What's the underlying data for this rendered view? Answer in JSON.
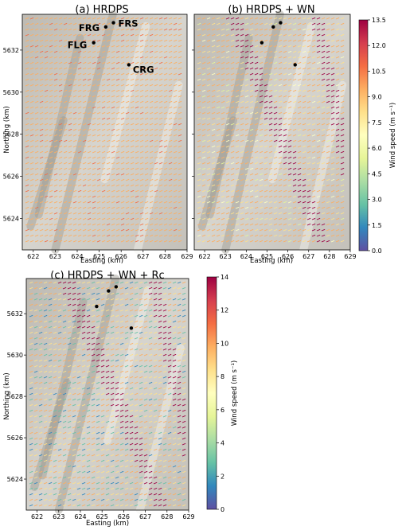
{
  "chart_data": {
    "type": "map",
    "panels": [
      {
        "title": "(a) HRDPS",
        "show_site_labels": true,
        "show_ylabel": true
      },
      {
        "title": "(b) HRDPS + WN",
        "show_site_labels": false,
        "show_ylabel": false
      },
      {
        "title": "(c) HRDPS + WN + Rc",
        "show_site_labels": false,
        "show_ylabel": true
      }
    ],
    "xlabel": "Easting (km)",
    "ylabel": "Northing (km)",
    "xlim": [
      621.5,
      629
    ],
    "ylim": [
      5622.5,
      5633.7
    ],
    "x_ticks": [
      "622",
      "623",
      "624",
      "625",
      "626",
      "627",
      "628",
      "629"
    ],
    "x_tick_values": [
      622,
      623,
      624,
      625,
      626,
      627,
      628,
      629
    ],
    "y_ticks": [
      "5624",
      "5626",
      "5628",
      "5630",
      "5632"
    ],
    "y_tick_values": [
      5624,
      5626,
      5628,
      5630,
      5632
    ],
    "sites": [
      {
        "name": "FRG",
        "x": 625.3,
        "y": 5633.1
      },
      {
        "name": "FRS",
        "x": 625.65,
        "y": 5633.3
      },
      {
        "name": "FLG",
        "x": 624.75,
        "y": 5632.35
      },
      {
        "name": "CRG",
        "x": 626.35,
        "y": 5631.3
      }
    ],
    "colorbars": [
      {
        "label": "Wind speed (m s⁻¹)",
        "range": [
          0,
          13.5
        ],
        "ticks": [
          "0.0",
          "1.5",
          "3.0",
          "4.5",
          "6.0",
          "7.5",
          "9.0",
          "10.5",
          "12.0",
          "13.5"
        ],
        "tick_values": [
          0,
          1.5,
          3,
          4.5,
          6,
          7.5,
          9,
          10.5,
          12,
          13.5
        ]
      },
      {
        "label": "Wind speed (m s⁻¹)",
        "range": [
          0,
          14
        ],
        "ticks": [
          "0",
          "2",
          "4",
          "6",
          "8",
          "10",
          "12",
          "14"
        ],
        "tick_values": [
          0,
          2,
          4,
          6,
          8,
          10,
          12,
          14
        ]
      }
    ],
    "colormap": [
      "#5e4fa2",
      "#3288bd",
      "#66c2a5",
      "#abdda4",
      "#e6f598",
      "#ffffbf",
      "#fee08b",
      "#fdae61",
      "#f46d43",
      "#d53e4f",
      "#9e0142"
    ]
  }
}
